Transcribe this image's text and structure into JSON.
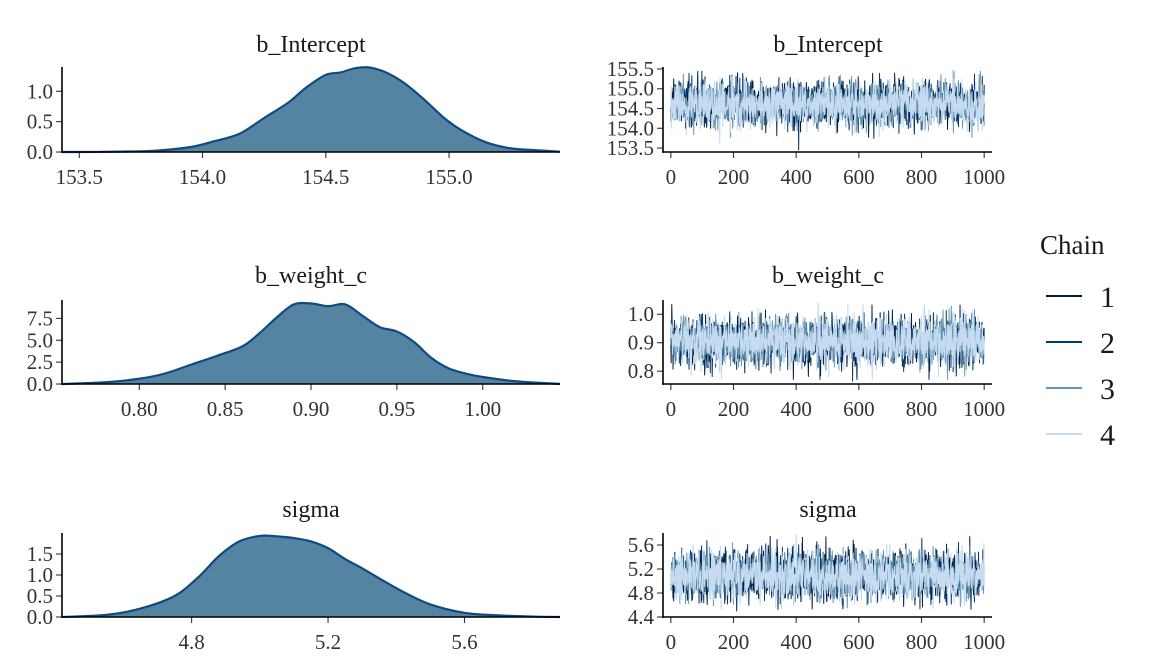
{
  "chart_data": [
    {
      "type": "area",
      "title": "b_Intercept",
      "xlim": [
        153.43,
        155.45
      ],
      "ylim": [
        0,
        1.4
      ],
      "xticks": [
        153.5,
        154.0,
        154.5,
        155.0
      ],
      "xtick_labels": [
        "153.5",
        "154.0",
        "154.5",
        "155.0"
      ],
      "yticks": [
        0,
        0.5,
        1.0
      ],
      "ytick_labels": [
        "0.0",
        "0.5",
        "1.0"
      ],
      "x": [
        153.43,
        153.6,
        153.8,
        153.95,
        154.05,
        154.15,
        154.25,
        154.35,
        154.42,
        154.5,
        154.56,
        154.62,
        154.68,
        154.75,
        154.82,
        154.9,
        154.98,
        155.05,
        155.15,
        155.25,
        155.35,
        155.45
      ],
      "y": [
        0,
        0.003,
        0.02,
        0.08,
        0.18,
        0.3,
        0.56,
        0.82,
        1.06,
        1.27,
        1.31,
        1.38,
        1.39,
        1.3,
        1.13,
        0.86,
        0.56,
        0.36,
        0.16,
        0.06,
        0.03,
        0.005
      ],
      "color": "#5583a2",
      "line_color": "#0f4a82"
    },
    {
      "type": "line",
      "title": "b_Intercept",
      "xlim": [
        -25,
        1025
      ],
      "ylim": [
        153.4,
        155.55
      ],
      "xticks": [
        0,
        200,
        400,
        600,
        800,
        1000
      ],
      "xtick_labels": [
        "0",
        "200",
        "400",
        "600",
        "800",
        "1000"
      ],
      "yticks": [
        153.5,
        154.0,
        154.5,
        155.0,
        155.5
      ],
      "ytick_labels": [
        "153.5",
        "154.0",
        "154.5",
        "155.0",
        "155.5"
      ],
      "iterations": 1000,
      "mean": 154.62,
      "sd": 0.28,
      "min": 153.45,
      "max": 155.48,
      "min_at": 408,
      "max_at": 900,
      "seed": 11
    },
    {
      "type": "area",
      "title": "b_weight_c",
      "xlim": [
        0.755,
        1.045
      ],
      "ylim": [
        0,
        9.6
      ],
      "xticks": [
        0.8,
        0.85,
        0.9,
        0.95,
        1.0
      ],
      "xtick_labels": [
        "0.80",
        "0.85",
        "0.90",
        "0.95",
        "1.00"
      ],
      "yticks": [
        0,
        2.5,
        5.0,
        7.5
      ],
      "ytick_labels": [
        "0.0",
        "2.5",
        "5.0",
        "7.5"
      ],
      "x": [
        0.755,
        0.78,
        0.8,
        0.815,
        0.83,
        0.845,
        0.86,
        0.87,
        0.88,
        0.89,
        0.9,
        0.91,
        0.92,
        0.93,
        0.94,
        0.95,
        0.96,
        0.97,
        0.98,
        0.99,
        1.0,
        1.02,
        1.045
      ],
      "y": [
        0,
        0.2,
        0.6,
        1.2,
        2.2,
        3.2,
        4.3,
        5.8,
        7.6,
        9.1,
        9.2,
        8.9,
        9.1,
        7.8,
        6.5,
        6.0,
        4.8,
        3.0,
        1.8,
        1.2,
        0.8,
        0.3,
        0
      ],
      "color": "#5583a2",
      "line_color": "#0f4a82"
    },
    {
      "type": "line",
      "title": "b_weight_c",
      "xlim": [
        -25,
        1025
      ],
      "ylim": [
        0.755,
        1.05
      ],
      "xticks": [
        0,
        200,
        400,
        600,
        800,
        1000
      ],
      "xtick_labels": [
        "0",
        "200",
        "400",
        "600",
        "800",
        "1000"
      ],
      "yticks": [
        0.8,
        0.9,
        1.0
      ],
      "ytick_labels": [
        "0.8",
        "0.9",
        "1.0"
      ],
      "iterations": 1000,
      "mean": 0.905,
      "sd": 0.042,
      "min": 0.765,
      "max": 1.04,
      "min_at": 580,
      "max_at": 470,
      "seed": 23
    },
    {
      "type": "area",
      "title": "sigma",
      "xlim": [
        4.42,
        5.88
      ],
      "ylim": [
        0,
        2.0
      ],
      "xticks": [
        4.8,
        5.2,
        5.6
      ],
      "xtick_labels": [
        "4.8",
        "5.2",
        "5.6"
      ],
      "yticks": [
        0,
        0.5,
        1.0,
        1.5
      ],
      "ytick_labels": [
        "0.0",
        "0.5",
        "1.0",
        "1.5"
      ],
      "x": [
        4.42,
        4.55,
        4.65,
        4.75,
        4.82,
        4.88,
        4.94,
        5.0,
        5.05,
        5.1,
        5.15,
        5.2,
        5.25,
        5.3,
        5.35,
        5.42,
        5.5,
        5.6,
        5.7,
        5.8,
        5.88
      ],
      "y": [
        0,
        0.05,
        0.2,
        0.5,
        0.95,
        1.45,
        1.8,
        1.93,
        1.92,
        1.88,
        1.8,
        1.64,
        1.38,
        1.16,
        0.92,
        0.6,
        0.3,
        0.1,
        0.04,
        0.01,
        0
      ],
      "color": "#5583a2",
      "line_color": "#0f4a82"
    },
    {
      "type": "line",
      "title": "sigma",
      "xlim": [
        -25,
        1025
      ],
      "ylim": [
        4.4,
        5.8
      ],
      "xticks": [
        0,
        200,
        400,
        600,
        800,
        1000
      ],
      "xtick_labels": [
        "0",
        "200",
        "400",
        "600",
        "800",
        "1000"
      ],
      "yticks": [
        4.4,
        4.8,
        5.2,
        5.6
      ],
      "ytick_labels": [
        "4.4",
        "4.8",
        "5.2",
        "5.6"
      ],
      "iterations": 1000,
      "mean": 5.1,
      "sd": 0.2,
      "min": 4.5,
      "max": 5.78,
      "min_at": 210,
      "max_at": 400,
      "seed": 37
    }
  ],
  "legend": {
    "title": "Chain",
    "items": [
      {
        "label": "1",
        "color": "#011f4b"
      },
      {
        "label": "2",
        "color": "#03396c"
      },
      {
        "label": "3",
        "color": "#6497b1"
      },
      {
        "label": "4",
        "color": "#c6dbef"
      }
    ]
  }
}
